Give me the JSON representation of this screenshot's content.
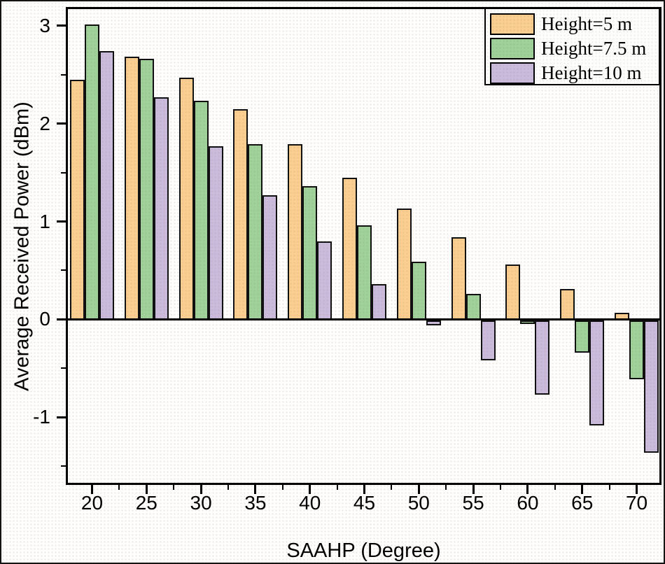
{
  "chart_data": {
    "type": "bar",
    "title": "",
    "xlabel": "SAAHP (Degree)",
    "ylabel": "Average Received Power (dBm)",
    "categories": [
      20,
      25,
      30,
      35,
      40,
      45,
      50,
      55,
      60,
      65,
      70
    ],
    "series": [
      {
        "name": "Height=5 m",
        "color": "#F9CE90",
        "values": [
          2.45,
          2.68,
          2.47,
          2.15,
          1.79,
          1.45,
          1.13,
          0.84,
          0.56,
          0.31,
          0.07
        ]
      },
      {
        "name": "Height=7.5 m",
        "color": "#A0D19A",
        "values": [
          3.01,
          2.66,
          2.23,
          1.79,
          1.36,
          0.96,
          0.59,
          0.26,
          -0.05,
          -0.34,
          -0.61
        ]
      },
      {
        "name": "Height=10 m",
        "color": "#CABBDC",
        "values": [
          2.74,
          2.27,
          1.77,
          1.27,
          0.8,
          0.36,
          -0.06,
          -0.42,
          -0.77,
          -1.08,
          -1.36
        ]
      }
    ],
    "x_ticks_major": [
      20,
      25,
      30,
      35,
      40,
      45,
      50,
      55,
      60,
      65,
      70
    ],
    "x_ticks_minor": [
      22.5,
      27.5,
      32.5,
      37.5,
      42.5,
      47.5,
      52.5,
      57.5,
      62.5,
      67.5
    ],
    "y_ticks_major": [
      -1,
      0,
      1,
      2,
      3
    ],
    "y_ticks_minor": [
      -1.5,
      -0.5,
      0.5,
      1.5,
      2.5
    ],
    "xlim": [
      17.59,
      72.28
    ],
    "ylim": [
      -1.69,
      3.19
    ],
    "grid": false,
    "legend_position": "top-right",
    "axis_color": "#000000",
    "bar_outline_color": "#111111"
  }
}
